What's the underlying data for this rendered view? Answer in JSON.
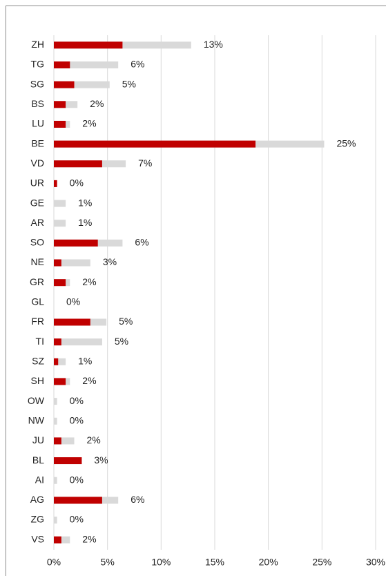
{
  "chart_data": {
    "type": "bar",
    "orientation": "horizontal",
    "categories": [
      "ZH",
      "TG",
      "SG",
      "BS",
      "LU",
      "BE",
      "VD",
      "UR",
      "GE",
      "AR",
      "SO",
      "NE",
      "GR",
      "GL",
      "FR",
      "TI",
      "SZ",
      "SH",
      "OW",
      "NW",
      "JU",
      "BL",
      "AI",
      "AG",
      "ZG",
      "VS"
    ],
    "series": [
      {
        "color": "#d9d9d9",
        "values": [
          12.8,
          6.0,
          5.2,
          2.2,
          1.5,
          25.2,
          6.7,
          0.3,
          1.1,
          1.1,
          6.4,
          3.4,
          1.5,
          0,
          4.9,
          4.5,
          1.1,
          1.5,
          0.3,
          0.3,
          1.9,
          2.6,
          0.3,
          6.0,
          0.3,
          1.5
        ],
        "value_labels": [
          "13%",
          "6%",
          "5%",
          "2%",
          "2%",
          "25%",
          "7%",
          "0%",
          "1%",
          "1%",
          "6%",
          "3%",
          "2%",
          "0%",
          "5%",
          "5%",
          "1%",
          "2%",
          "0%",
          "0%",
          "2%",
          "3%",
          "0%",
          "6%",
          "0%",
          "2%"
        ]
      },
      {
        "color": "#c00000",
        "values": [
          6.4,
          1.5,
          1.9,
          1.1,
          1.1,
          18.8,
          4.5,
          0.3,
          0,
          0,
          4.1,
          0.7,
          1.1,
          0,
          3.4,
          0.7,
          0.4,
          1.1,
          0,
          0,
          0.7,
          2.6,
          0,
          4.5,
          0,
          0.7
        ]
      }
    ],
    "xlim": [
      0,
      30
    ],
    "xticks": [
      {
        "value": 0,
        "label": "0%"
      },
      {
        "value": 5,
        "label": "5%"
      },
      {
        "value": 10,
        "label": "10%"
      },
      {
        "value": 15,
        "label": "15%"
      },
      {
        "value": 20,
        "label": "20%"
      },
      {
        "value": 25,
        "label": "25%"
      },
      {
        "value": 30,
        "label": "30%"
      }
    ],
    "grid": true
  }
}
